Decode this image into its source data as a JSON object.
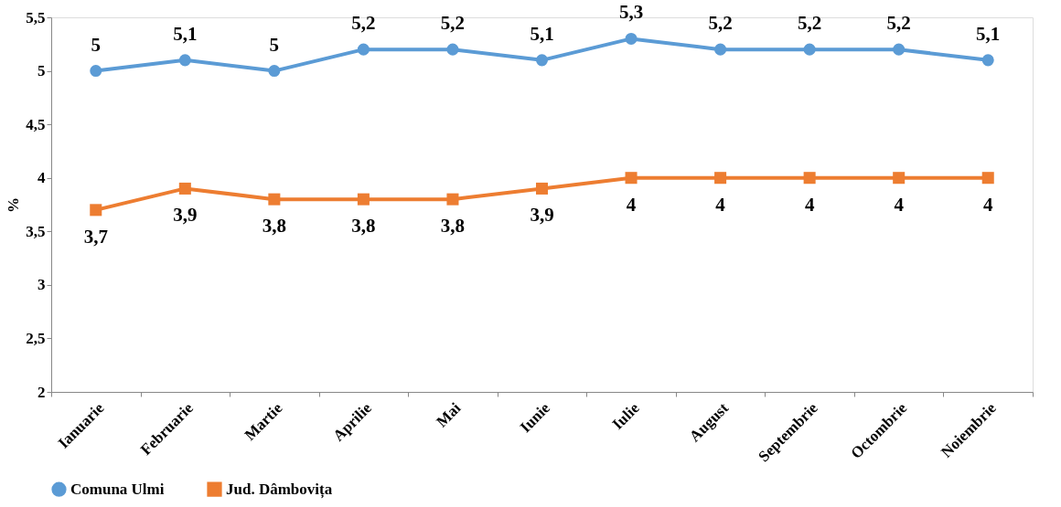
{
  "chart_data": {
    "type": "line",
    "ylabel": "%",
    "categories": [
      "Ianuarie",
      "Februarie",
      "Martie",
      "Aprilie",
      "Mai",
      "Iunie",
      "Iulie",
      "August",
      "Septembrie",
      "Octombrie",
      "Noiembrie"
    ],
    "series": [
      {
        "name": "Comuna Ulmi",
        "color": "#5b9bd5",
        "marker": "circle",
        "values": [
          5,
          5.1,
          5,
          5.2,
          5.2,
          5.1,
          5.3,
          5.2,
          5.2,
          5.2,
          5.1
        ],
        "value_labels": [
          "5",
          "5,1",
          "5",
          "5,2",
          "5,2",
          "5,1",
          "5,3",
          "5,2",
          "5,2",
          "5,2",
          "5,1"
        ]
      },
      {
        "name": "Jud. Dâmbovița",
        "color": "#ed7d31",
        "marker": "square",
        "values": [
          3.7,
          3.9,
          3.8,
          3.8,
          3.8,
          3.9,
          4,
          4,
          4,
          4,
          4
        ],
        "value_labels": [
          "3,7",
          "3,9",
          "3,8",
          "3,8",
          "3,8",
          "3,9",
          "4",
          "4",
          "4",
          "4",
          "4"
        ]
      }
    ],
    "ylim": [
      2,
      5.5
    ],
    "yticks": [
      2,
      {
        "value": 2.5,
        "label": "2,5"
      },
      3,
      {
        "value": 3.5,
        "label": "3,5"
      },
      4,
      {
        "value": 4.5,
        "label": "4,5"
      },
      5,
      {
        "value": 5.5,
        "label": "5,5"
      }
    ],
    "grid": false,
    "legend": "bottom",
    "line_style": "solid"
  }
}
